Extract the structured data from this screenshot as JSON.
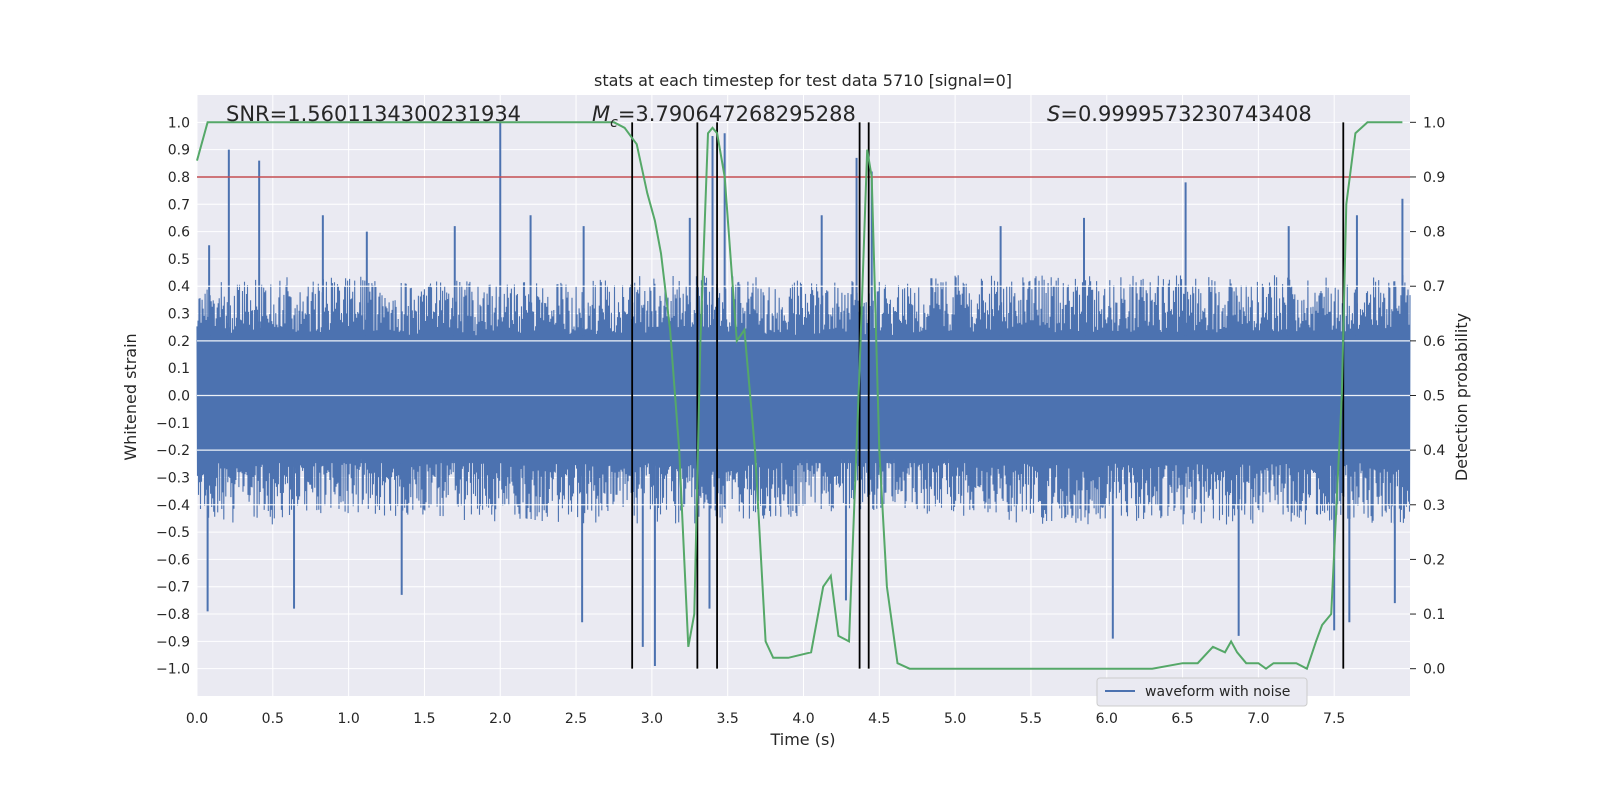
{
  "chart_data": {
    "type": "line",
    "title": "stats at each timestep for test data 5710 [signal=0]",
    "xlabel": "Time (s)",
    "ylabel_left": "Whitened strain",
    "ylabel_right": "Detection probability",
    "xlim": [
      0.0,
      8.0
    ],
    "ylim_left": [
      -1.1,
      1.1
    ],
    "ylim_right": [
      -0.05,
      1.05
    ],
    "x_ticks": [
      "0.0",
      "0.5",
      "1.0",
      "1.5",
      "2.0",
      "2.5",
      "3.0",
      "3.5",
      "4.0",
      "4.5",
      "5.0",
      "5.5",
      "6.0",
      "6.5",
      "7.0",
      "7.5"
    ],
    "y_ticks_left": [
      "1.0",
      "0.9",
      "0.8",
      "0.7",
      "0.6",
      "0.5",
      "0.4",
      "0.3",
      "0.2",
      "0.1",
      "0.0",
      "−0.1",
      "−0.2",
      "−0.3",
      "−0.4",
      "−0.5",
      "−0.6",
      "−0.7",
      "−0.8",
      "−0.9",
      "−1.0"
    ],
    "y_ticks_right": [
      "1.0",
      "0.9",
      "0.8",
      "0.7",
      "0.6",
      "0.5",
      "0.4",
      "0.3",
      "0.2",
      "0.1",
      "0.0"
    ],
    "annotations": {
      "snr": "SNR=1.5601134300231934",
      "mc_symbol": "M",
      "mc_sub": "c",
      "mc_value": "=3.790647268295288",
      "s_symbol": "S",
      "s_value": "=0.9999573230743408"
    },
    "threshold_line": {
      "y": 0.8,
      "color": "#c44e52"
    },
    "vertical_lines_x": [
      2.87,
      3.3,
      3.43,
      4.37,
      4.43,
      7.56
    ],
    "waveform": {
      "name": "waveform with noise",
      "color": "#4c72b0",
      "envelope": [
        [
          0.0,
          0.4,
          -0.45
        ],
        [
          0.5,
          0.42,
          -0.45
        ],
        [
          1.0,
          0.42,
          -0.42
        ],
        [
          1.5,
          0.4,
          -0.42
        ],
        [
          2.0,
          0.4,
          -0.45
        ],
        [
          2.5,
          0.4,
          -0.45
        ],
        [
          3.0,
          0.42,
          -0.45
        ],
        [
          3.5,
          0.42,
          -0.45
        ],
        [
          4.0,
          0.4,
          -0.42
        ],
        [
          4.5,
          0.4,
          -0.4
        ],
        [
          5.0,
          0.42,
          -0.42
        ],
        [
          5.5,
          0.42,
          -0.45
        ],
        [
          6.0,
          0.42,
          -0.45
        ],
        [
          6.5,
          0.42,
          -0.45
        ],
        [
          7.0,
          0.42,
          -0.45
        ],
        [
          7.5,
          0.42,
          -0.45
        ],
        [
          8.0,
          0.42,
          -0.45
        ]
      ],
      "peaks": [
        [
          0.08,
          0.55
        ],
        [
          0.21,
          0.9
        ],
        [
          0.41,
          0.86
        ],
        [
          0.83,
          0.66
        ],
        [
          1.12,
          0.6
        ],
        [
          1.7,
          0.62
        ],
        [
          2.0,
          1.0
        ],
        [
          2.2,
          0.66
        ],
        [
          2.55,
          0.62
        ],
        [
          3.25,
          0.65
        ],
        [
          3.4,
          0.95
        ],
        [
          3.48,
          0.96
        ],
        [
          4.12,
          0.66
        ],
        [
          4.35,
          0.87
        ],
        [
          4.45,
          0.82
        ],
        [
          5.3,
          0.62
        ],
        [
          5.85,
          0.65
        ],
        [
          6.52,
          0.78
        ],
        [
          7.2,
          0.62
        ],
        [
          7.65,
          0.66
        ],
        [
          7.95,
          0.72
        ]
      ],
      "troughs": [
        [
          0.07,
          -0.79
        ],
        [
          0.64,
          -0.78
        ],
        [
          1.35,
          -0.73
        ],
        [
          2.54,
          -0.83
        ],
        [
          2.94,
          -0.92
        ],
        [
          3.02,
          -0.99
        ],
        [
          3.38,
          -0.78
        ],
        [
          4.28,
          -0.75
        ],
        [
          6.04,
          -0.89
        ],
        [
          6.87,
          -0.88
        ],
        [
          7.5,
          -0.86
        ],
        [
          7.6,
          -0.83
        ],
        [
          7.9,
          -0.76
        ]
      ]
    },
    "detection_probability": {
      "color": "#55a868",
      "x": [
        0.0,
        0.07,
        0.3,
        1.0,
        2.0,
        2.5,
        2.75,
        2.82,
        2.9,
        2.97,
        3.02,
        3.06,
        3.12,
        3.18,
        3.24,
        3.28,
        3.32,
        3.37,
        3.4,
        3.43,
        3.48,
        3.52,
        3.56,
        3.61,
        3.68,
        3.75,
        3.8,
        3.9,
        4.05,
        4.13,
        4.18,
        4.23,
        4.3,
        4.37,
        4.42,
        4.45,
        4.5,
        4.55,
        4.62,
        4.7,
        4.78,
        5.0,
        5.2,
        5.5,
        6.0,
        6.3,
        6.5,
        6.6,
        6.7,
        6.78,
        6.82,
        6.86,
        6.92,
        7.0,
        7.05,
        7.1,
        7.15,
        7.25,
        7.32,
        7.38,
        7.42,
        7.48,
        7.55,
        7.58,
        7.64,
        7.72,
        7.95
      ],
      "y": [
        0.93,
        1.0,
        1.0,
        1.0,
        1.0,
        1.0,
        1.0,
        0.99,
        0.96,
        0.87,
        0.82,
        0.76,
        0.62,
        0.4,
        0.04,
        0.1,
        0.6,
        0.98,
        0.99,
        0.98,
        0.9,
        0.75,
        0.6,
        0.62,
        0.4,
        0.05,
        0.02,
        0.02,
        0.03,
        0.15,
        0.17,
        0.06,
        0.05,
        0.55,
        0.95,
        0.9,
        0.4,
        0.15,
        0.01,
        0.0,
        0.0,
        0.0,
        0.0,
        0.0,
        0.0,
        0.0,
        0.01,
        0.01,
        0.04,
        0.03,
        0.05,
        0.03,
        0.01,
        0.01,
        0.0,
        0.01,
        0.01,
        0.01,
        0.0,
        0.05,
        0.08,
        0.1,
        0.5,
        0.85,
        0.98,
        1.0,
        1.0
      ]
    },
    "legend": {
      "entries": [
        "waveform with noise"
      ],
      "placement": "bottom-right"
    },
    "grid": true
  }
}
